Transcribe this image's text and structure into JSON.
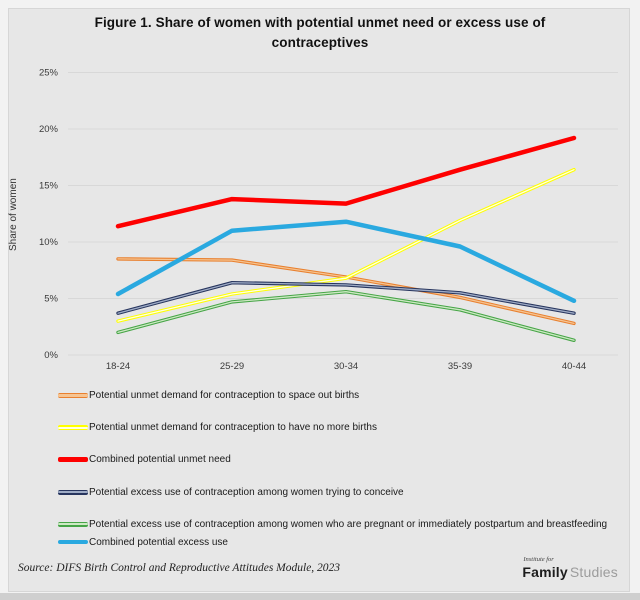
{
  "chart_data": {
    "type": "line",
    "title": "Figure 1. Share of women with potential unmet need or excess use of contraceptives",
    "ylabel": "Share of women",
    "categories": [
      "18-24",
      "25-29",
      "30-34",
      "35-39",
      "40-44"
    ],
    "ylim": [
      0,
      25
    ],
    "y_tick_step": 5,
    "y_tick_labels": [
      "0%",
      "5%",
      "10%",
      "15%",
      "20%",
      "25%"
    ],
    "grid": true,
    "legend_position": "bottom-left",
    "series": [
      {
        "name": "Potential unmet demand for contraception to space out births",
        "values": [
          8.5,
          8.4,
          6.9,
          5.1,
          2.8
        ],
        "color": "#E8802F",
        "inner_color": "#F6C492",
        "style": "double"
      },
      {
        "name": "Potential unmet demand for contraception to have no more births",
        "values": [
          3.0,
          5.4,
          6.8,
          11.9,
          16.4
        ],
        "color": "#FFFF00",
        "inner_color": "#FFFFE6",
        "style": "double"
      },
      {
        "name": "Combined potential unmet need",
        "values": [
          11.4,
          13.8,
          13.4,
          16.4,
          19.2
        ],
        "color": "#FE0000",
        "style": "solid"
      },
      {
        "name": "Potential excess use of contraception among women trying to conceive",
        "values": [
          3.7,
          6.4,
          6.2,
          5.5,
          3.7
        ],
        "color": "#27355E",
        "inner_color": "#9FACC6",
        "style": "double"
      },
      {
        "name": "Potential excess use of contraception among women who are pregnant or immediately postpartum and breastfeeding",
        "values": [
          2.0,
          4.7,
          5.6,
          4.0,
          1.3
        ],
        "color": "#46A546",
        "inner_color": "#CDE9C4",
        "style": "double"
      },
      {
        "name": "Combined potential excess use",
        "values": [
          5.4,
          11.0,
          11.8,
          9.6,
          4.8
        ],
        "color": "#2AA9E0",
        "style": "solid"
      }
    ]
  },
  "source": {
    "text": "Source: DIFS Birth Control and Reproductive Attitudes Module, 2023"
  },
  "logo": {
    "top": "Institute for",
    "brand_bold": "Family",
    "brand_light": "Studies"
  }
}
